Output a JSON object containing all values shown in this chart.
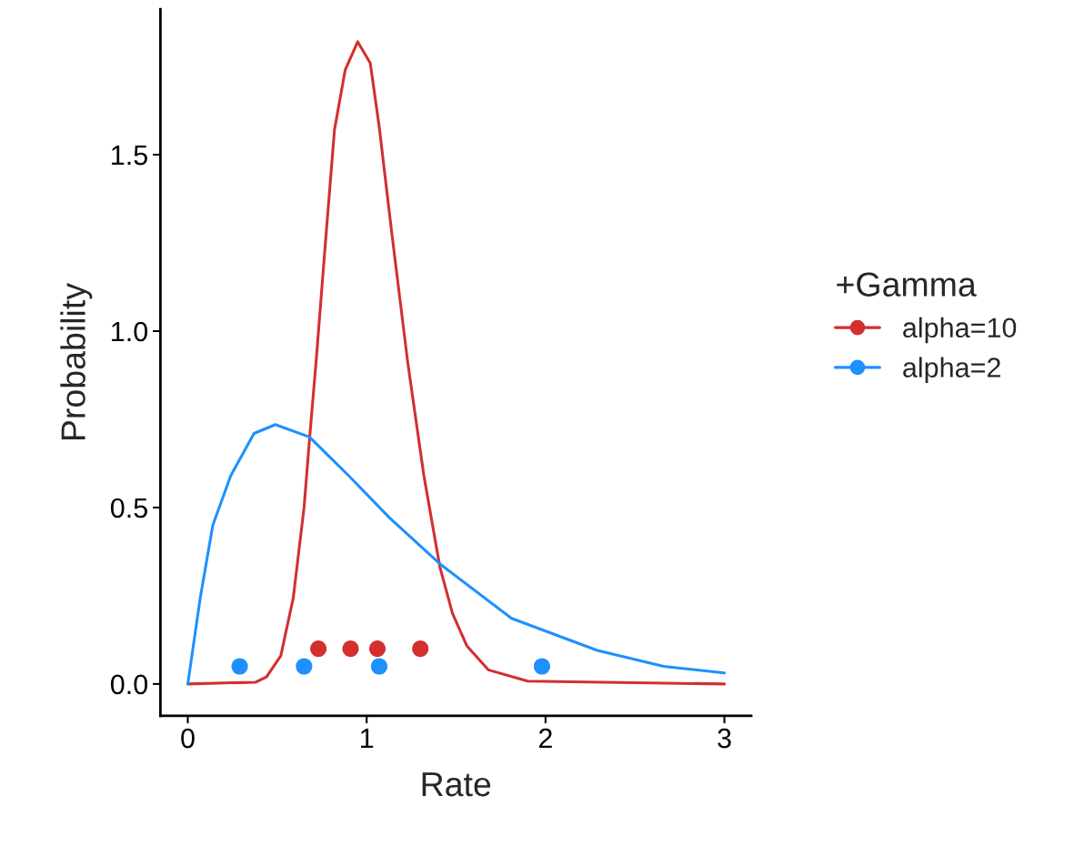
{
  "chart_data": {
    "type": "line",
    "xlabel": "Rate",
    "ylabel": "Probability",
    "legend_title": "+Gamma",
    "legend": "right",
    "grid": false,
    "xlim": [
      -0.153,
      3.15
    ],
    "ylim": [
      -0.09,
      1.912
    ],
    "xticks": [
      0,
      1,
      2,
      3
    ],
    "yticks": [
      {
        "value": 0,
        "label": "0.0"
      },
      {
        "value": 0.5,
        "label": "0.5"
      },
      {
        "value": 1,
        "label": "1.0"
      },
      {
        "value": 1.5,
        "label": "1.5"
      }
    ],
    "series": [
      {
        "name": "alpha=10",
        "color": "#d32f2f",
        "x": [
          0,
          0.38,
          0.44,
          0.52,
          0.59,
          0.65,
          0.68,
          0.72,
          0.76,
          0.82,
          0.88,
          0.95,
          1.02,
          1.07,
          1.14,
          1.23,
          1.32,
          1.41,
          1.48,
          1.56,
          1.68,
          1.9,
          3.0
        ],
        "values": [
          0,
          0.005,
          0.02,
          0.08,
          0.245,
          0.5,
          0.69,
          0.93,
          1.19,
          1.57,
          1.74,
          1.82,
          1.76,
          1.58,
          1.28,
          0.91,
          0.59,
          0.33,
          0.2,
          0.108,
          0.04,
          0.008,
          0
        ]
      },
      {
        "name": "alpha=2",
        "color": "#1e90ff",
        "x": [
          0,
          0.07,
          0.14,
          0.24,
          0.37,
          0.49,
          0.68,
          0.9,
          1.13,
          1.41,
          1.81,
          2.29,
          2.66,
          3.0
        ],
        "values": [
          0,
          0.245,
          0.45,
          0.59,
          0.71,
          0.735,
          0.7,
          0.59,
          0.47,
          0.34,
          0.186,
          0.095,
          0.05,
          0.031
        ]
      },
      {
        "type": "scatter",
        "marker": "circle",
        "color": "#d32f2f",
        "x": [
          0.73,
          0.91,
          1.06,
          1.3
        ],
        "values": [
          0.1,
          0.1,
          0.1,
          0.1
        ]
      },
      {
        "type": "scatter",
        "marker": "circle",
        "color": "#1e90ff",
        "x": [
          0.29,
          0.65,
          1.07,
          1.98
        ],
        "values": [
          0.05,
          0.05,
          0.05,
          0.05
        ]
      }
    ]
  }
}
